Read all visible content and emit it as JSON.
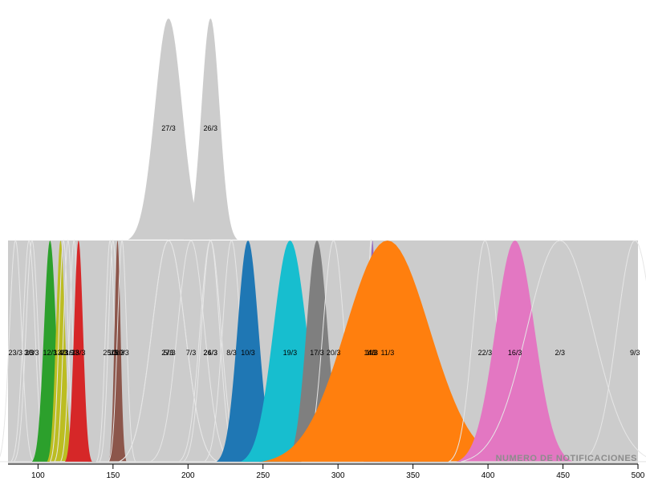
{
  "chart_data": {
    "type": "area",
    "title": "",
    "xlabel": "NUMERO DE NOTIFICACIONES",
    "ylabel": "",
    "xlim": [
      80,
      500
    ],
    "x_ticks": [
      100,
      150,
      200,
      250,
      300,
      350,
      400,
      450,
      500
    ],
    "grid": false,
    "legend": "none",
    "base_color": "#cccccc",
    "series": [
      {
        "name": "23/3",
        "x": 85,
        "spread": 4,
        "peak": 1.0,
        "color": "#cccccc"
      },
      {
        "name": "3/3",
        "x": 94,
        "spread": 4,
        "peak": 1.0,
        "color": "#cccccc"
      },
      {
        "name": "28/3",
        "x": 96,
        "spread": 4,
        "peak": 1.0,
        "color": "#cccccc"
      },
      {
        "name": "12/3",
        "x": 108,
        "spread": 4,
        "peak": 1.0,
        "color": "#2ca02c"
      },
      {
        "name": "13/3",
        "x": 115,
        "spread": 3,
        "peak": 1.0,
        "color": "#bcbd22"
      },
      {
        "name": "4/3",
        "x": 117,
        "spread": 3,
        "peak": 1.0,
        "color": "#cccccc"
      },
      {
        "name": "21/3",
        "x": 120,
        "spread": 3,
        "peak": 1.0,
        "color": "#cccccc"
      },
      {
        "name": "6/3",
        "x": 124,
        "spread": 3,
        "peak": 1.0,
        "color": "#cccccc"
      },
      {
        "name": "18/3",
        "x": 127,
        "spread": 3,
        "peak": 1.0,
        "color": "#d62728"
      },
      {
        "name": "25/3",
        "x": 148,
        "spread": 3,
        "peak": 1.0,
        "color": "#cccccc"
      },
      {
        "name": "1/3",
        "x": 150,
        "spread": 3,
        "peak": 1.0,
        "color": "#cccccc"
      },
      {
        "name": "15/3",
        "x": 153,
        "spread": 2,
        "peak": 1.0,
        "color": "#8c564b"
      },
      {
        "name": "29/3",
        "x": 156,
        "spread": 3,
        "peak": 1.0,
        "color": "#cccccc"
      },
      {
        "name": "27/3",
        "x": 187,
        "spread": 11,
        "peak": 1.0,
        "color": "#cccccc"
      },
      {
        "name": "5/3",
        "x": 187,
        "spread": 11,
        "peak": 1.0,
        "color": "#cccccc"
      },
      {
        "name": "7/3",
        "x": 202,
        "spread": 9,
        "peak": 1.0,
        "color": "#cccccc"
      },
      {
        "name": "26/3",
        "x": 215,
        "spread": 6,
        "peak": 1.0,
        "color": "#cccccc"
      },
      {
        "name": "24/3",
        "x": 215,
        "spread": 7,
        "peak": 1.0,
        "color": "#cccccc"
      },
      {
        "name": "8/3",
        "x": 229,
        "spread": 6,
        "peak": 1.0,
        "color": "#cccccc"
      },
      {
        "name": "10/3",
        "x": 240,
        "spread": 7,
        "peak": 1.0,
        "color": "#1f77b4"
      },
      {
        "name": "19/3",
        "x": 268,
        "spread": 11,
        "peak": 1.0,
        "color": "#17becf"
      },
      {
        "name": "17/3",
        "x": 286,
        "spread": 7,
        "peak": 1.0,
        "color": "#7f7f7f"
      },
      {
        "name": "20/3",
        "x": 297,
        "spread": 7,
        "peak": 1.0,
        "color": "#cccccc"
      },
      {
        "name": "14/3",
        "x": 322,
        "spread": 2,
        "peak": 1.0,
        "color": "#cccccc"
      },
      {
        "name": "1/3",
        "x": 322,
        "spread": 2,
        "peak": 1.0,
        "color": "#cccccc"
      },
      {
        "name": "4/3",
        "x": 323,
        "spread": 2,
        "peak": 1.0,
        "color": "#9467bd"
      },
      {
        "name": "11/3",
        "x": 333,
        "spread": 28,
        "peak": 1.0,
        "color": "#ff7f0e"
      },
      {
        "name": "22/3",
        "x": 398,
        "spread": 8,
        "peak": 1.0,
        "color": "#cccccc"
      },
      {
        "name": "16/3",
        "x": 418,
        "spread": 13,
        "peak": 1.0,
        "color": "#e377c2"
      },
      {
        "name": "2/3",
        "x": 448,
        "spread": 22,
        "peak": 1.0,
        "color": "#cccccc"
      },
      {
        "name": "9/3",
        "x": 498,
        "spread": 12,
        "peak": 1.0,
        "color": "#cccccc"
      }
    ],
    "highlighted": [
      {
        "name": "27/3",
        "x": 187,
        "spread": 9,
        "peak": 2.0
      },
      {
        "name": "26/3",
        "x": 215,
        "spread": 6,
        "peak": 2.0
      }
    ]
  }
}
